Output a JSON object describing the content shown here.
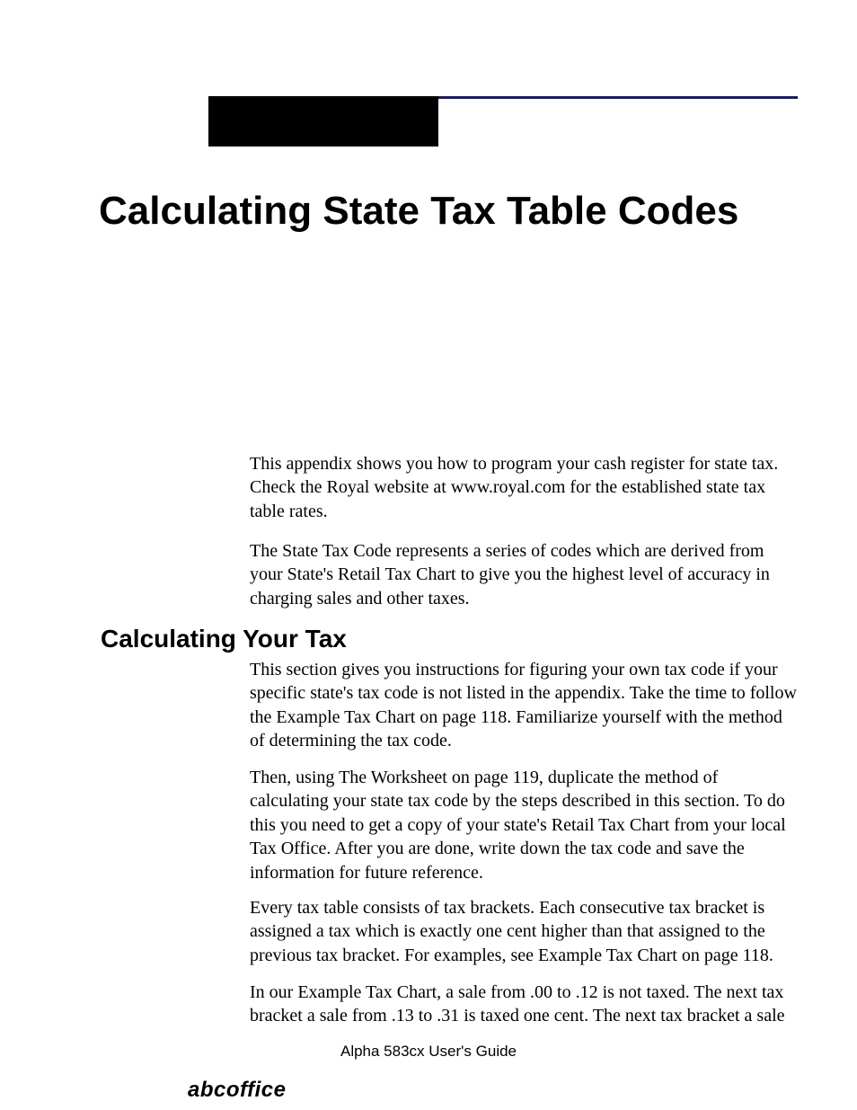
{
  "title": "Calculating State Tax Table Codes",
  "intro": {
    "p1": "This appendix shows you how to program your cash register for state tax. Check the Royal website at www.royal.com for the established state tax table rates.",
    "p2": "The State Tax Code represents a series of codes which are derived from your State's Retail Tax Chart to give you the highest level of accuracy in charging sales and other taxes."
  },
  "section": {
    "heading": "Calculating Your Tax",
    "p1": "This section gives you instructions for figuring your own tax code if your specific state's tax code is not listed in the appendix. Take the time to follow the Example Tax Chart on page 118. Familiarize yourself with the method of determining the tax code.",
    "p2": "Then, using The Worksheet on page 119, duplicate the method of calculating your state tax code by the steps described in this section. To do this you need to get a copy of your state's Retail Tax Chart from your local Tax Office. After you are done, write down the tax code and save the information for future reference.",
    "p3": "Every tax table consists of tax brackets. Each consecutive tax bracket is assigned a tax which is exactly one cent higher than that assigned to the previous tax bracket. For examples, see Example Tax Chart on page 118.",
    "p4": "In our Example Tax Chart, a sale from .00 to .12 is not taxed. The next tax bracket a sale from .13 to .31 is taxed one cent. The next tax bracket a sale"
  },
  "footer": {
    "guide": "Alpha 583cx  User's Guide",
    "brand": "abcoffice"
  },
  "style": {
    "page_bg": "#ffffff",
    "rule_color": "#1a1a5c",
    "block_color": "#000000",
    "title_font": "Myriad Pro",
    "title_size_pt": 33,
    "heading_size_pt": 21,
    "body_font": "Georgia",
    "body_size_pt": 15,
    "footer_size_pt": 13,
    "brand_size_pt": 18
  }
}
